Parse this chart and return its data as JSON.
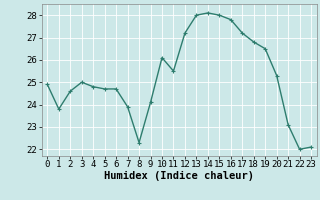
{
  "x": [
    0,
    1,
    2,
    3,
    4,
    5,
    6,
    7,
    8,
    9,
    10,
    11,
    12,
    13,
    14,
    15,
    16,
    17,
    18,
    19,
    20,
    21,
    22,
    23
  ],
  "y": [
    24.9,
    23.8,
    24.6,
    25.0,
    24.8,
    24.7,
    24.7,
    23.9,
    22.3,
    24.1,
    26.1,
    25.5,
    27.2,
    28.0,
    28.1,
    28.0,
    27.8,
    27.2,
    26.8,
    26.5,
    25.3,
    23.1,
    22.0,
    22.1
  ],
  "line_color": "#2e7d6e",
  "marker": "+",
  "marker_size": 3,
  "linewidth": 1.0,
  "xlabel": "Humidex (Indice chaleur)",
  "ylim": [
    21.7,
    28.5
  ],
  "xlim": [
    -0.5,
    23.5
  ],
  "yticks": [
    22,
    23,
    24,
    25,
    26,
    27,
    28
  ],
  "xticks": [
    0,
    1,
    2,
    3,
    4,
    5,
    6,
    7,
    8,
    9,
    10,
    11,
    12,
    13,
    14,
    15,
    16,
    17,
    18,
    19,
    20,
    21,
    22,
    23
  ],
  "bg_color": "#cce8e8",
  "grid_color": "#ffffff",
  "xlabel_fontsize": 7.5,
  "tick_fontsize": 6.5
}
